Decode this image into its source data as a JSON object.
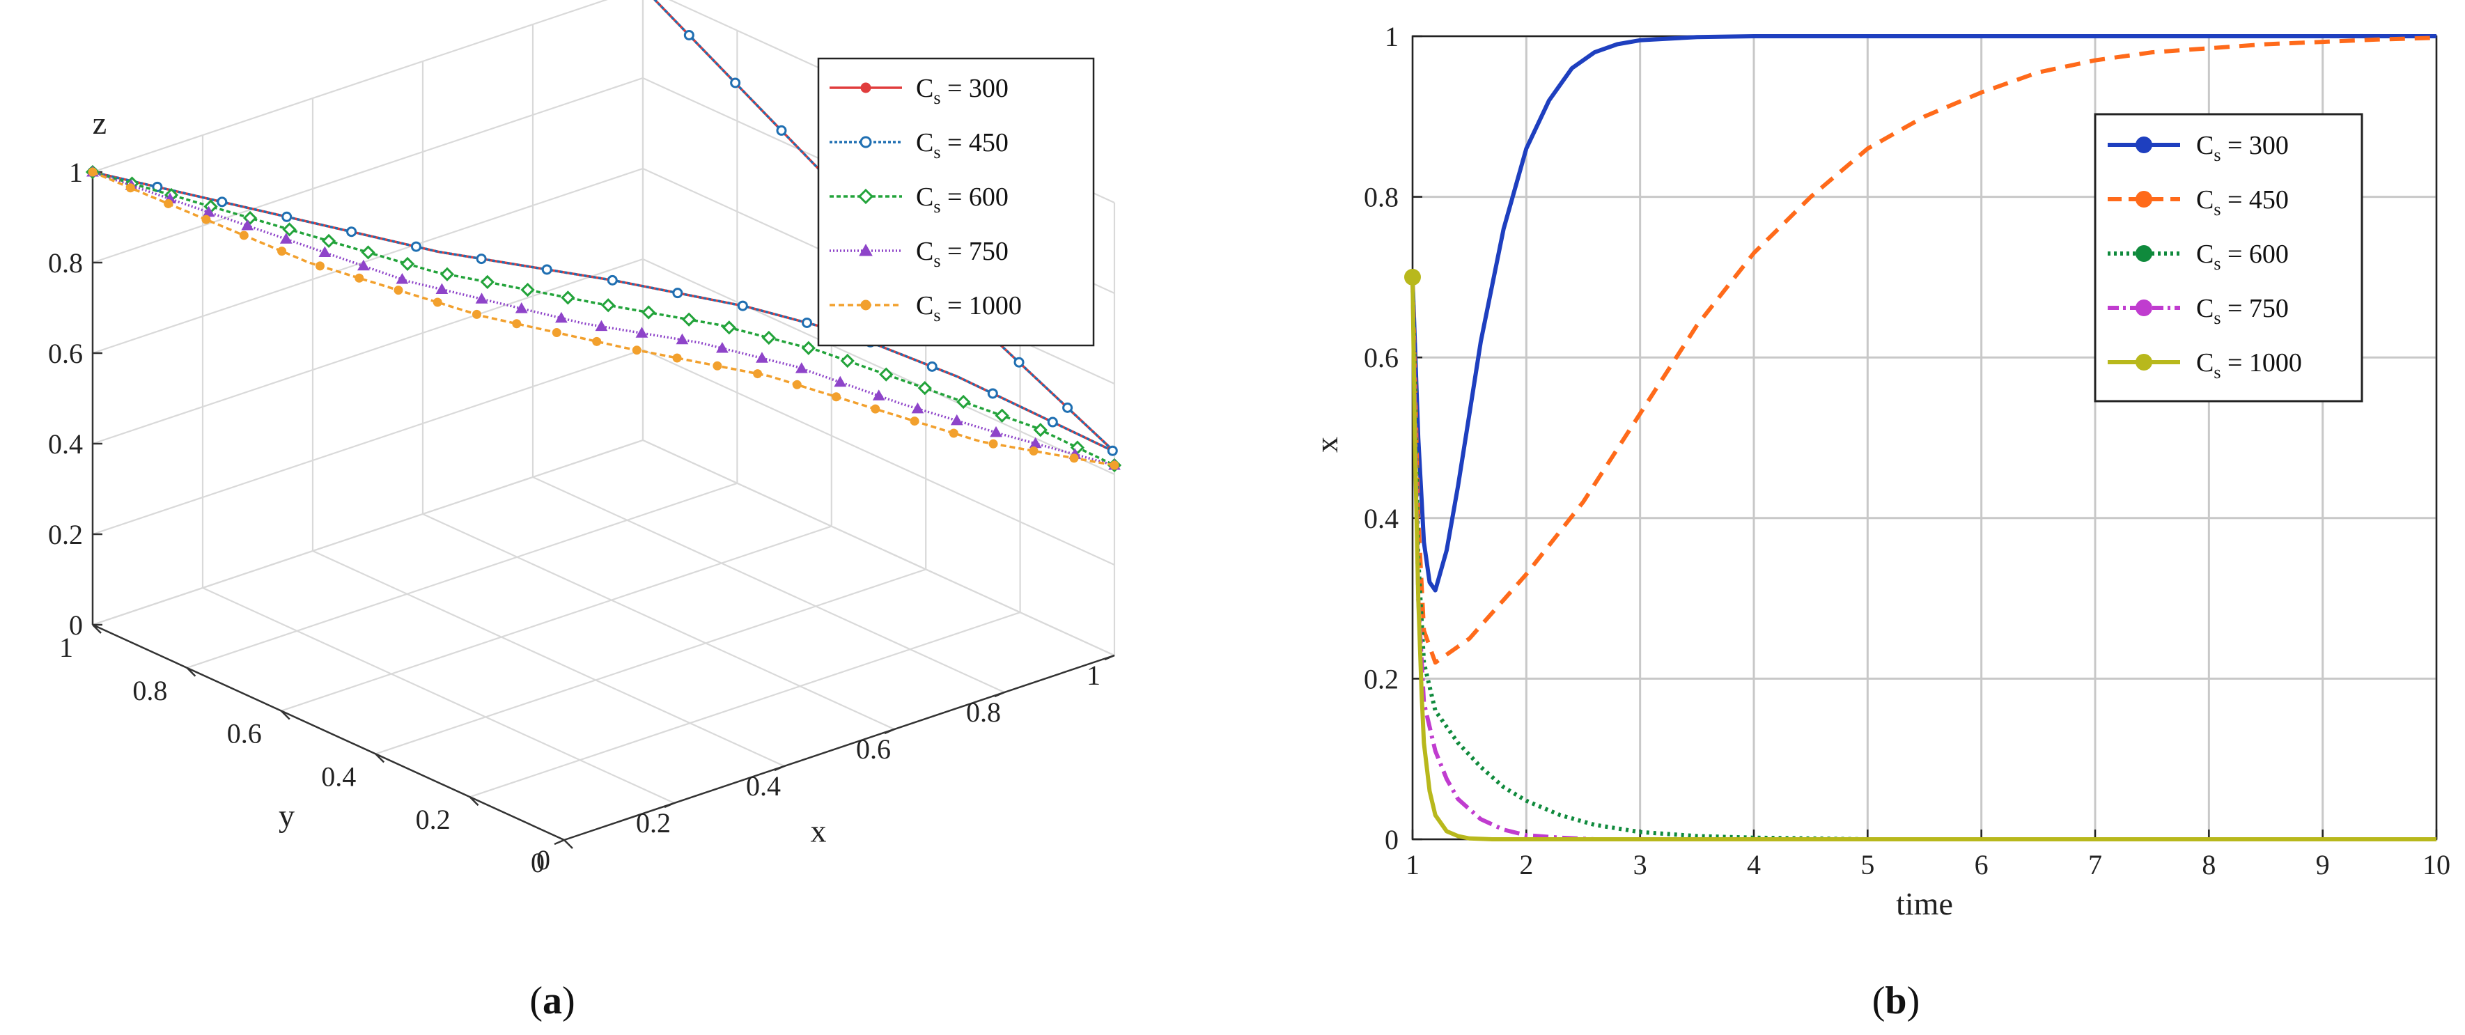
{
  "chart_data": [
    {
      "panel": "(a)",
      "panel_letter": "a",
      "type": "line",
      "projection": "3d",
      "axes": {
        "x": {
          "label": "x",
          "lim": [
            0,
            1
          ],
          "ticks": [
            "0",
            "0.2",
            "0.4",
            "0.6",
            "0.8",
            "1"
          ]
        },
        "y": {
          "label": "y",
          "lim": [
            0,
            1
          ],
          "ticks": [
            "0",
            "0.2",
            "0.4",
            "0.6",
            "0.8",
            "1"
          ]
        },
        "z": {
          "label": "z",
          "lim": [
            0,
            1
          ],
          "ticks": [
            "0",
            "0.2",
            "0.4",
            "0.6",
            "0.8",
            "1"
          ]
        }
      },
      "grid": true,
      "legend_placement": "top-right",
      "series": [
        {
          "name": "C",
          "sub": "s",
          "value_label": " = 300",
          "color": "#e03c3c",
          "dash": "solid",
          "marker": "filled-circle",
          "points": [
            [
              0,
              1,
              1
            ],
            [
              0.2,
              0.5,
              0.98
            ],
            [
              0.35,
              0.3,
              0.95
            ],
            [
              0.5,
              0.2,
              0.88
            ],
            [
              0.65,
              0.15,
              0.78
            ],
            [
              0.8,
              0.1,
              0.65
            ],
            [
              0.95,
              0.02,
              0.5
            ],
            [
              1,
              0,
              0.45
            ],
            [
              1,
              0.5,
              0.7
            ],
            [
              1,
              1,
              1
            ]
          ]
        },
        {
          "name": "C",
          "sub": "s",
          "value_label": " = 450",
          "color": "#1f6fb2",
          "dash": "4,3",
          "marker": "open-circle",
          "points": [
            [
              0,
              1,
              1
            ],
            [
              0.2,
              0.5,
              0.98
            ],
            [
              0.35,
              0.3,
              0.95
            ],
            [
              0.5,
              0.2,
              0.88
            ],
            [
              0.65,
              0.15,
              0.78
            ],
            [
              0.8,
              0.1,
              0.65
            ],
            [
              0.95,
              0.02,
              0.5
            ],
            [
              1,
              0,
              0.45
            ],
            [
              1,
              0.5,
              0.7
            ],
            [
              1,
              1,
              1
            ]
          ]
        },
        {
          "name": "C",
          "sub": "s",
          "value_label": " = 600",
          "color": "#22a33a",
          "dash": "6,4",
          "marker": "open-diamond",
          "points": [
            [
              0,
              1,
              1
            ],
            [
              0.15,
              0.45,
              0.98
            ],
            [
              0.3,
              0.28,
              0.93
            ],
            [
              0.45,
              0.2,
              0.86
            ],
            [
              0.6,
              0.16,
              0.76
            ],
            [
              0.75,
              0.11,
              0.64
            ],
            [
              0.9,
              0.05,
              0.52
            ],
            [
              1,
              0,
              0.42
            ]
          ]
        },
        {
          "name": "C",
          "sub": "s",
          "value_label": " = 750",
          "color": "#8e44c9",
          "dash": "2,3",
          "marker": "triangle",
          "points": [
            [
              0,
              1,
              1
            ],
            [
              0.1,
              0.45,
              0.98
            ],
            [
              0.25,
              0.25,
              0.92
            ],
            [
              0.4,
              0.18,
              0.85
            ],
            [
              0.55,
              0.15,
              0.75
            ],
            [
              0.7,
              0.1,
              0.63
            ],
            [
              0.85,
              0.06,
              0.52
            ],
            [
              1,
              0,
              0.42
            ]
          ]
        },
        {
          "name": "C",
          "sub": "s",
          "value_label": " = 1000",
          "color": "#f2a02d",
          "dash": "8,5",
          "marker": "filled-circle",
          "points": [
            [
              0,
              1,
              1
            ],
            [
              0.05,
              0.6,
              0.97
            ],
            [
              0.15,
              0.35,
              0.93
            ],
            [
              0.3,
              0.22,
              0.86
            ],
            [
              0.5,
              0.15,
              0.75
            ],
            [
              0.65,
              0.1,
              0.64
            ],
            [
              0.8,
              0.05,
              0.53
            ],
            [
              1,
              0,
              0.42
            ]
          ]
        }
      ]
    },
    {
      "panel": "(b)",
      "panel_letter": "b",
      "type": "line",
      "xlabel": "time",
      "ylabel": "x",
      "xlim": [
        1,
        10
      ],
      "ylim": [
        0,
        1
      ],
      "xticks": [
        1,
        2,
        3,
        4,
        5,
        6,
        7,
        8,
        9,
        10
      ],
      "yticks": [
        0,
        0.2,
        0.4,
        0.6,
        0.8,
        1
      ],
      "ytick_labels": [
        "0",
        "0.2",
        "0.4",
        "0.6",
        "0.8",
        "1"
      ],
      "grid": true,
      "legend_placement": "top-right",
      "series": [
        {
          "name": "C",
          "sub": "s",
          "value_label": " = 300",
          "color": "#1e3fbf",
          "dash": "solid",
          "x": [
            1,
            1.05,
            1.1,
            1.15,
            1.2,
            1.3,
            1.4,
            1.5,
            1.6,
            1.8,
            2,
            2.2,
            2.4,
            2.6,
            2.8,
            3,
            3.5,
            4,
            5,
            6,
            7,
            8,
            9,
            10
          ],
          "y": [
            0.7,
            0.5,
            0.37,
            0.32,
            0.31,
            0.36,
            0.44,
            0.53,
            0.62,
            0.76,
            0.86,
            0.92,
            0.96,
            0.98,
            0.99,
            0.995,
            0.999,
            1,
            1,
            1,
            1,
            1,
            1,
            1
          ]
        },
        {
          "name": "C",
          "sub": "s",
          "value_label": " = 450",
          "color": "#ff6a1a",
          "dash": "22,14",
          "x": [
            1,
            1.05,
            1.1,
            1.2,
            1.3,
            1.5,
            2,
            2.5,
            3,
            3.5,
            4,
            4.5,
            5,
            5.5,
            6,
            6.5,
            7,
            7.5,
            8,
            8.5,
            9,
            9.5,
            10
          ],
          "y": [
            0.7,
            0.4,
            0.26,
            0.22,
            0.23,
            0.25,
            0.33,
            0.42,
            0.53,
            0.64,
            0.73,
            0.8,
            0.86,
            0.9,
            0.93,
            0.955,
            0.97,
            0.98,
            0.985,
            0.99,
            0.993,
            0.996,
            0.998
          ]
        },
        {
          "name": "C",
          "sub": "s",
          "value_label": " = 600",
          "color": "#0f8a3c",
          "dash": "4,6",
          "x": [
            1,
            1.05,
            1.1,
            1.2,
            1.4,
            1.6,
            1.8,
            2,
            2.3,
            2.6,
            3,
            3.5,
            4,
            5,
            6,
            7,
            8,
            9,
            10
          ],
          "y": [
            0.7,
            0.35,
            0.22,
            0.16,
            0.12,
            0.09,
            0.065,
            0.048,
            0.03,
            0.018,
            0.009,
            0.004,
            0.002,
            0,
            0,
            0,
            0,
            0,
            0
          ]
        },
        {
          "name": "C",
          "sub": "s",
          "value_label": " = 750",
          "color": "#c03ccf",
          "dash": "22,8,4,8",
          "x": [
            1,
            1.05,
            1.1,
            1.2,
            1.3,
            1.4,
            1.6,
            1.8,
            2,
            2.3,
            2.6,
            3,
            4,
            5,
            6,
            7,
            8,
            9,
            10
          ],
          "y": [
            0.7,
            0.3,
            0.17,
            0.11,
            0.075,
            0.05,
            0.025,
            0.012,
            0.005,
            0.002,
            0,
            0,
            0,
            0,
            0,
            0,
            0,
            0,
            0
          ]
        },
        {
          "name": "C",
          "sub": "s",
          "value_label": " = 1000",
          "color": "#b8b81c",
          "dash": "solid",
          "x": [
            1,
            1.02,
            1.05,
            1.08,
            1.1,
            1.15,
            1.2,
            1.3,
            1.4,
            1.5,
            1.7,
            2,
            3,
            4,
            5,
            6,
            7,
            8,
            9,
            10
          ],
          "y": [
            0.7,
            0.5,
            0.3,
            0.18,
            0.12,
            0.06,
            0.03,
            0.01,
            0.004,
            0.001,
            0,
            0,
            0,
            0,
            0,
            0,
            0,
            0,
            0,
            0
          ]
        }
      ]
    }
  ]
}
